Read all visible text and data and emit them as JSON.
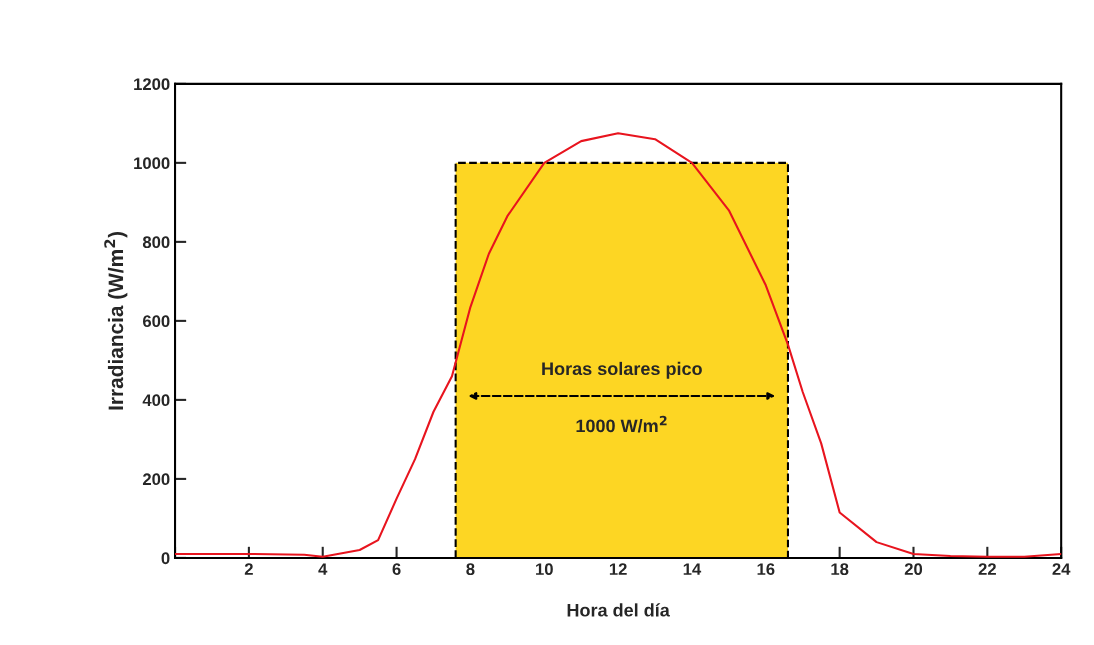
{
  "chart_data": {
    "type": "line",
    "xlabel": "Hora del día",
    "ylabel": "Irradiancia (W/m$^{2}$)",
    "x": [
      0,
      2,
      3.5,
      4,
      5,
      5.5,
      6,
      6.5,
      7,
      7.5,
      8,
      8.5,
      9,
      10,
      11,
      12,
      13,
      14,
      15,
      16,
      16.6,
      17,
      17.5,
      18,
      19,
      20,
      21,
      22,
      23,
      24
    ],
    "series": [
      {
        "type": "area",
        "x": [
          7.6,
          16.6
        ],
        "values": [
          1000,
          1000
        ],
        "color": "#fdd623",
        "line_style": "dashed"
      },
      {
        "color": "#e8141e",
        "values": [
          10,
          10,
          8,
          3,
          20,
          45,
          150,
          250,
          370,
          460,
          635,
          770,
          865,
          1000,
          1055,
          1075,
          1060,
          1000,
          880,
          690,
          540,
          420,
          290,
          115,
          40,
          10,
          5,
          3,
          3,
          10
        ]
      }
    ],
    "xlim": [
      0,
      24
    ],
    "xticks": [
      {
        "value": 0,
        "label": null
      },
      2,
      4,
      6,
      8,
      10,
      12,
      14,
      16,
      18,
      20,
      22,
      24
    ],
    "ylim": [
      0,
      1200
    ],
    "yticks": [
      0,
      200,
      400,
      600,
      800,
      1000,
      1200
    ],
    "annotations": [
      "Horas solares pico",
      "1000 W/m$^{2}$"
    ],
    "grid": false,
    "legend": false,
    "marker": "none",
    "line_style": "solid"
  }
}
